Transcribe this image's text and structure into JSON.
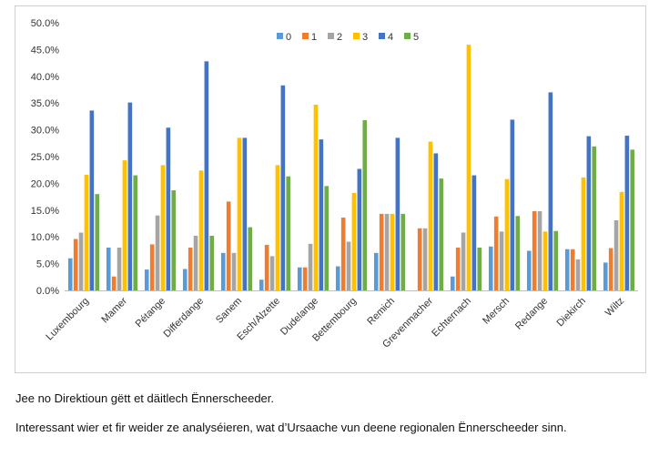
{
  "chart_data": {
    "type": "bar",
    "categories": [
      "Luxembourg",
      "Mamer",
      "Pétange",
      "Differdange",
      "Sanem",
      "Esch/Alzette",
      "Dudelange",
      "Bettembourg",
      "Remich",
      "Grevenmacher",
      "Echternach",
      "Mersch",
      "Redange",
      "Diekirch",
      "Wiltz"
    ],
    "series": [
      {
        "name": "0",
        "color": "#5B9BD5",
        "values": [
          6.0,
          8.0,
          3.9,
          4.0,
          7.0,
          2.0,
          4.3,
          4.5,
          7.0,
          0.0,
          2.6,
          8.2,
          7.4,
          7.7,
          5.2
        ]
      },
      {
        "name": "1",
        "color": "#ED7D31",
        "values": [
          9.6,
          2.6,
          8.6,
          8.0,
          16.6,
          8.5,
          4.3,
          13.6,
          14.3,
          11.6,
          8.0,
          13.8,
          14.8,
          7.7,
          7.9
        ]
      },
      {
        "name": "2",
        "color": "#A5A5A5",
        "values": [
          10.8,
          8.0,
          14.0,
          10.2,
          7.0,
          6.4,
          8.7,
          9.1,
          14.3,
          11.6,
          10.8,
          11.0,
          14.8,
          5.8,
          13.1
        ]
      },
      {
        "name": "3",
        "color": "#FFC000",
        "values": [
          21.6,
          24.3,
          23.4,
          22.4,
          28.5,
          23.4,
          34.7,
          18.2,
          14.3,
          27.8,
          45.9,
          20.8,
          11.0,
          21.1,
          18.4
        ]
      },
      {
        "name": "4",
        "color": "#4472C4",
        "values": [
          33.6,
          35.1,
          30.4,
          42.8,
          28.5,
          38.3,
          28.2,
          22.7,
          28.5,
          25.6,
          21.5,
          31.9,
          37.0,
          28.8,
          28.9
        ]
      },
      {
        "name": "5",
        "color": "#70AD47",
        "values": [
          18.0,
          21.5,
          18.7,
          10.2,
          11.8,
          21.3,
          19.5,
          31.8,
          14.3,
          20.9,
          8.0,
          13.9,
          11.1,
          26.9,
          26.3
        ]
      }
    ],
    "y_ticks": [
      "0.0%",
      "5.0%",
      "10.0%",
      "15.0%",
      "20.0%",
      "25.0%",
      "30.0%",
      "35.0%",
      "40.0%",
      "45.0%",
      "50.0%"
    ],
    "ylim": [
      0,
      50
    ],
    "grid": false,
    "legend_position": "top-center",
    "axis_color": "#bfbfbf"
  },
  "captions": {
    "line1": "Jee no Direktioun gëtt et däitlech Ënnerscheeder.",
    "line2": "Interessant wier et fir weider ze analyséieren, wat d’Ursaache vun deene regionalen Ënnerscheeder sinn."
  }
}
